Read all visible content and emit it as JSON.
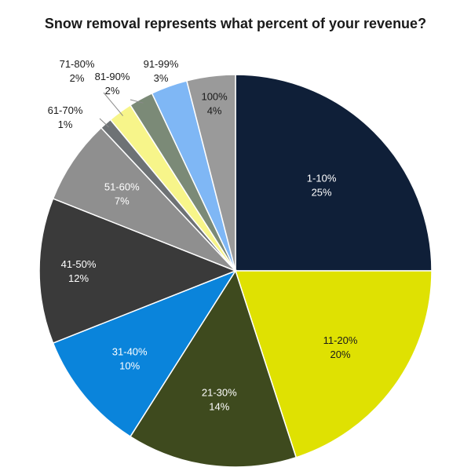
{
  "chart_data": {
    "type": "pie",
    "title": "Snow removal represents what percent of your revenue?",
    "slices": [
      {
        "label": "1-10%",
        "value": 25,
        "percent_label": "25%",
        "color": "#0f1f38",
        "text_color": "#ffffff"
      },
      {
        "label": "11-20%",
        "value": 20,
        "percent_label": "20%",
        "color": "#dfe102",
        "text_color": "#1a1a1a"
      },
      {
        "label": "21-30%",
        "value": 14,
        "percent_label": "14%",
        "color": "#3e4a1e",
        "text_color": "#ffffff"
      },
      {
        "label": "31-40%",
        "value": 10,
        "percent_label": "10%",
        "color": "#0a84db",
        "text_color": "#ffffff"
      },
      {
        "label": "41-50%",
        "value": 12,
        "percent_label": "12%",
        "color": "#3a3a3a",
        "text_color": "#ffffff"
      },
      {
        "label": "51-60%",
        "value": 7,
        "percent_label": "7%",
        "color": "#8f8f8f",
        "text_color": "#ffffff"
      },
      {
        "label": "61-70%",
        "value": 1,
        "percent_label": "1%",
        "color": "#6e7275",
        "text_color": "#1a1a1a"
      },
      {
        "label": "71-80%",
        "value": 2,
        "percent_label": "2%",
        "color": "#f7f58a",
        "text_color": "#1a1a1a"
      },
      {
        "label": "81-90%",
        "value": 2,
        "percent_label": "2%",
        "color": "#7b8a77",
        "text_color": "#1a1a1a"
      },
      {
        "label": "91-99%",
        "value": 3,
        "percent_label": "3%",
        "color": "#7fb7f5",
        "text_color": "#1a1a1a"
      },
      {
        "label": "100%",
        "value": 4,
        "percent_label": "4%",
        "color": "#9a9a9a",
        "text_color": "#1a1a1a"
      }
    ]
  }
}
